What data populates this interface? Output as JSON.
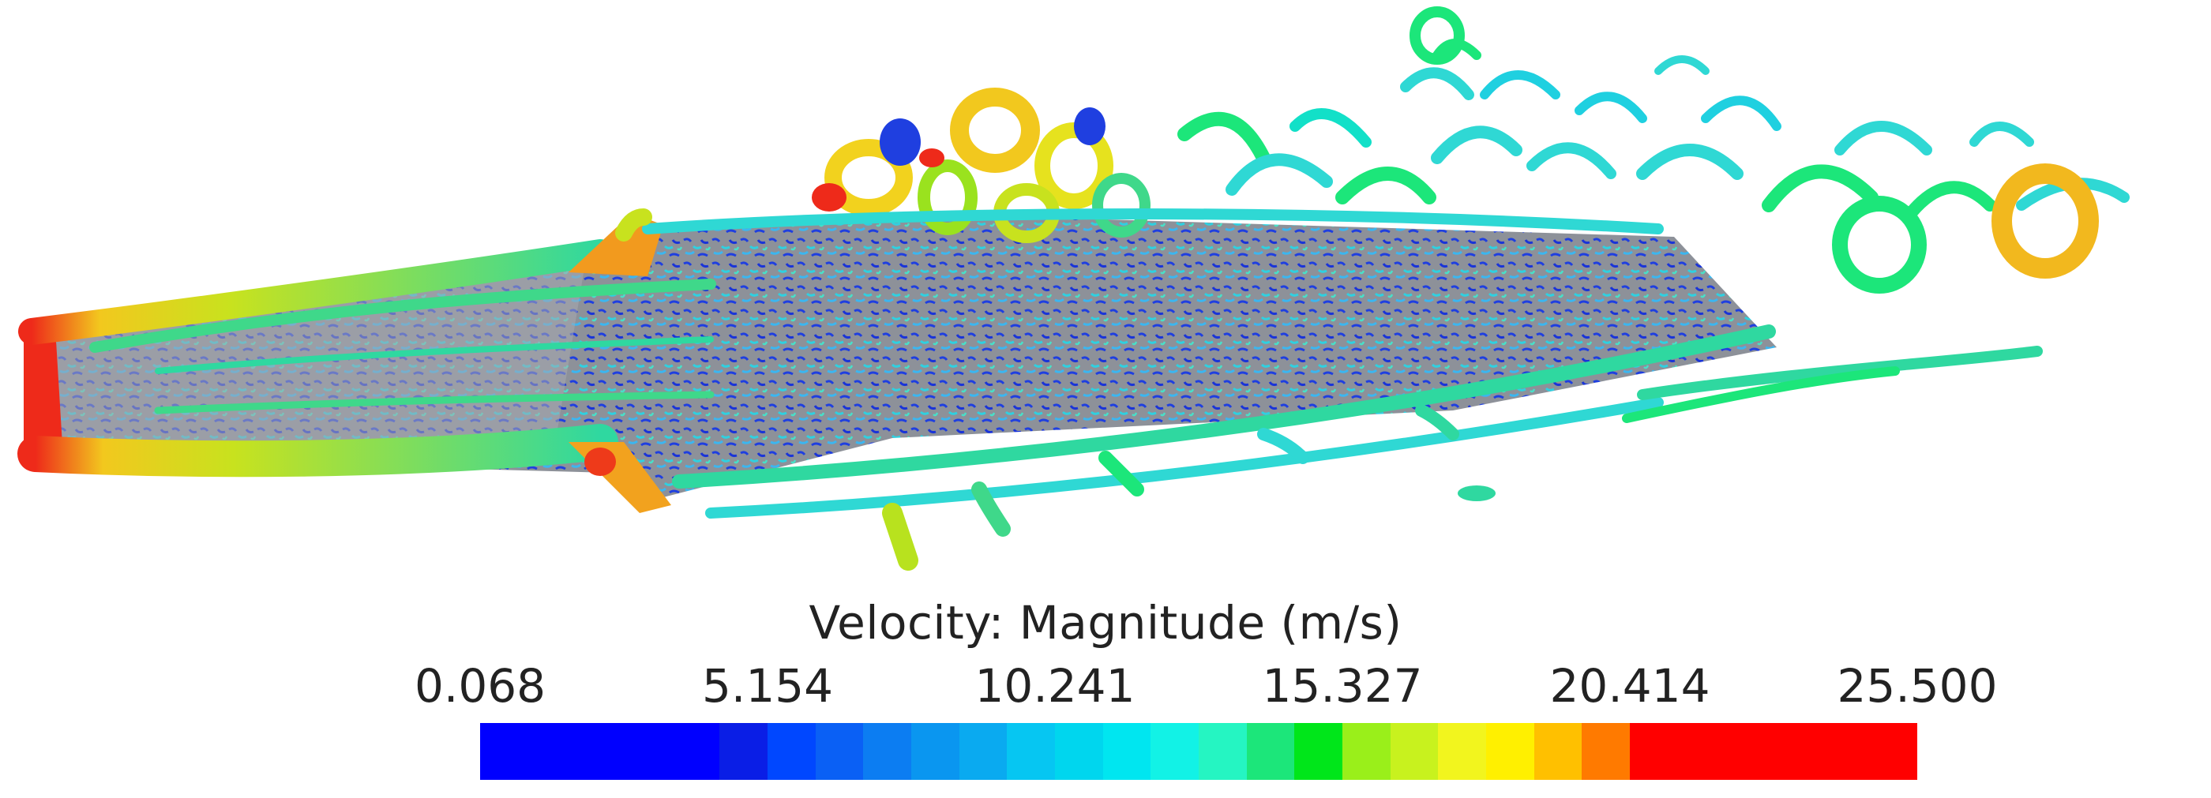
{
  "colorbar": {
    "title": "Velocity: Magnitude (m/s)",
    "ticks": [
      "0.068",
      "5.154",
      "10.241",
      "15.327",
      "20.414",
      "25.500"
    ],
    "min": 0.068,
    "max": 25.5,
    "scale": "linear",
    "colors": [
      "#0000ff",
      "#0000ff",
      "#0000ff",
      "#0000ff",
      "#0000ff",
      "#0a1ee6",
      "#0047ff",
      "#0a60f5",
      "#0c7df2",
      "#0a96f0",
      "#0aaaf0",
      "#06c6f2",
      "#00d6ee",
      "#00e6f0",
      "#12f2e6",
      "#25f5c2",
      "#1ce67a",
      "#00e61a",
      "#9aef1a",
      "#c8f21e",
      "#f2f51e",
      "#fff000",
      "#ffc000",
      "#ff7a00",
      "#ff0000",
      "#ff0000",
      "#ff0000",
      "#ff0000",
      "#ff0000",
      "#ff0000"
    ]
  },
  "scene": {
    "description_colors": {
      "deck": "#8e929a",
      "vortex_low": "#1f3fe0",
      "vortex_mid": "#2fd8d4",
      "vortex_high": "#f2e21e",
      "vortex_peak": "#ee2a1a"
    }
  }
}
